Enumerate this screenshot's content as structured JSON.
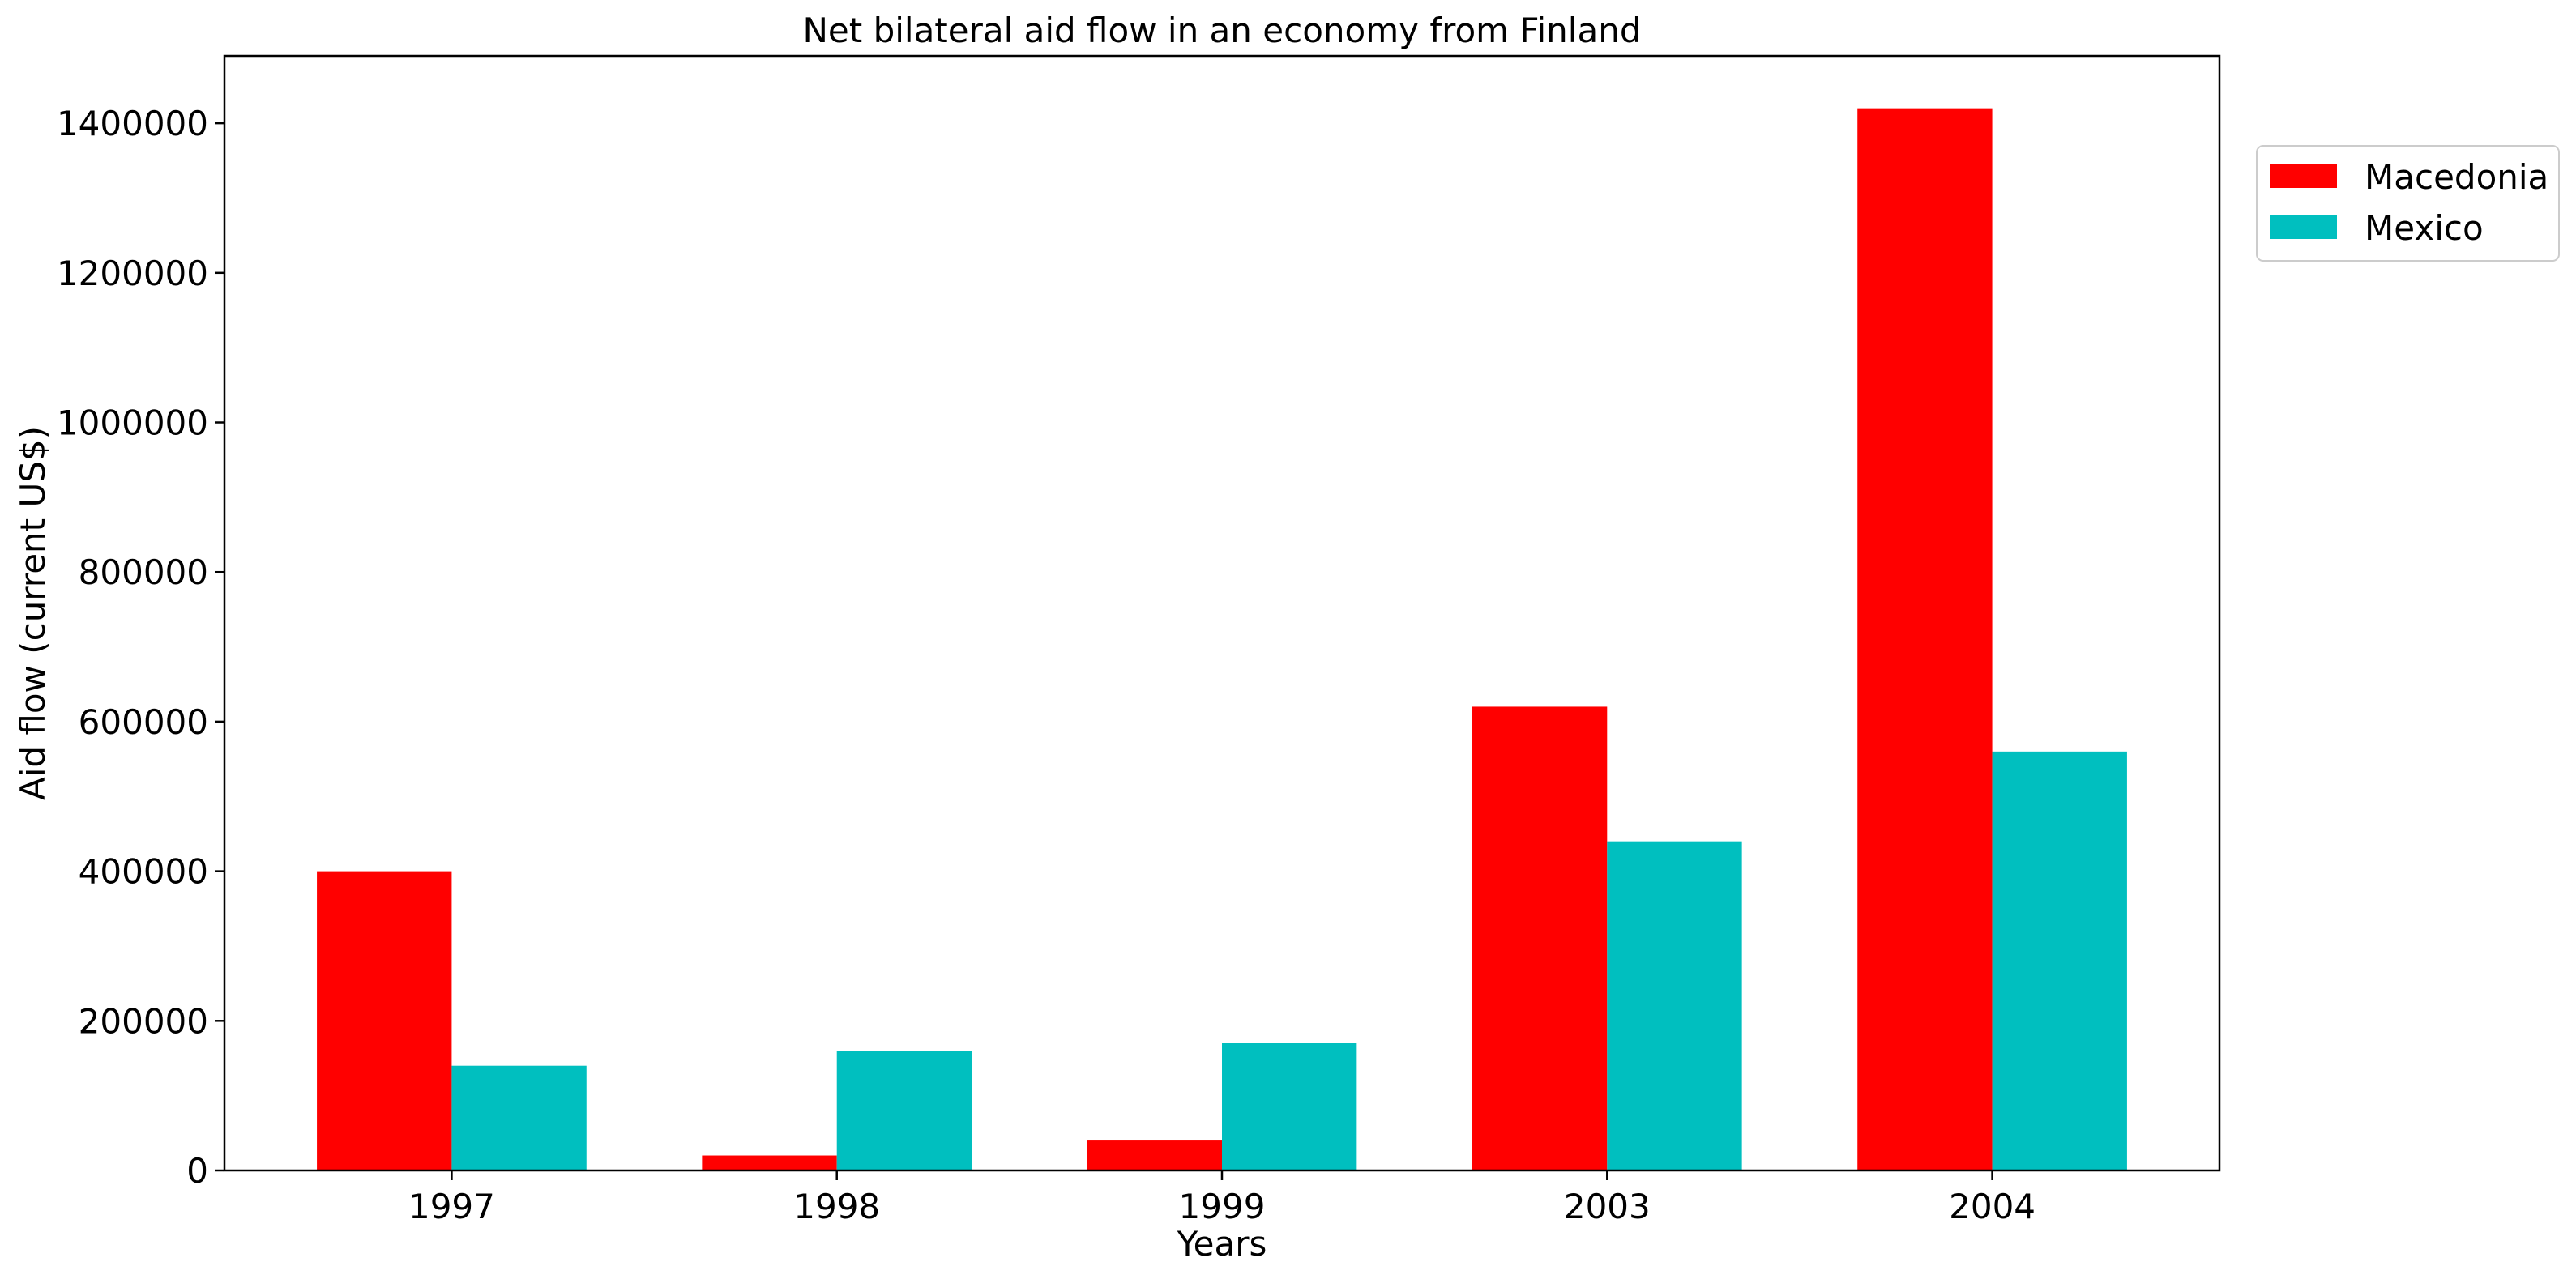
{
  "chart_data": {
    "type": "bar",
    "title": "Net bilateral aid flow in an economy from Finland",
    "xlabel": "Years",
    "ylabel": "Aid flow (current US$)",
    "categories": [
      "1997",
      "1998",
      "1999",
      "2003",
      "2004"
    ],
    "series": [
      {
        "name": "Macedonia",
        "color": "#ff0000",
        "values": [
          400000,
          20000,
          40000,
          620000,
          1420000
        ]
      },
      {
        "name": "Mexico",
        "color": "#00bfbf",
        "values": [
          140000,
          160000,
          170000,
          440000,
          560000
        ]
      }
    ],
    "ylim": [
      0,
      1490000
    ],
    "yticks": [
      0,
      200000,
      400000,
      600000,
      800000,
      1000000,
      1200000,
      1400000
    ],
    "ytick_labels": [
      "0",
      "200000",
      "400000",
      "600000",
      "800000",
      "1000000",
      "1200000",
      "1400000"
    ],
    "grid": false,
    "legend_position": "top-right-outside"
  }
}
